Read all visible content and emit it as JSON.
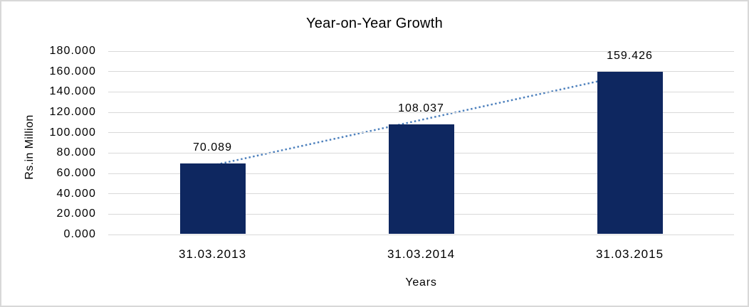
{
  "chart_data": {
    "type": "bar",
    "title": "Year-on-Year Growth",
    "xlabel": "Years",
    "ylabel": "Rs.in Million",
    "categories": [
      "31.03.2013",
      "31.03.2014",
      "31.03.2015"
    ],
    "values": [
      70.089,
      108.037,
      159.426
    ],
    "data_labels": [
      "70.089",
      "108.037",
      "159.426"
    ],
    "ylim": [
      0,
      180
    ],
    "ytick_step": 20,
    "ytick_labels": [
      "0.000",
      "20.000",
      "40.000",
      "60.000",
      "80.000",
      "100.000",
      "120.000",
      "140.000",
      "160.000",
      "180.000"
    ],
    "grid": true,
    "legend": false,
    "trendline": {
      "type": "linear",
      "style": "dotted"
    },
    "colors": {
      "bar": "#0e2760",
      "trendline": "#4e81bd",
      "gridline": "#d9d9d9",
      "text": "#000000",
      "background": "#ffffff",
      "frame_border": "#d8d8d8"
    }
  }
}
